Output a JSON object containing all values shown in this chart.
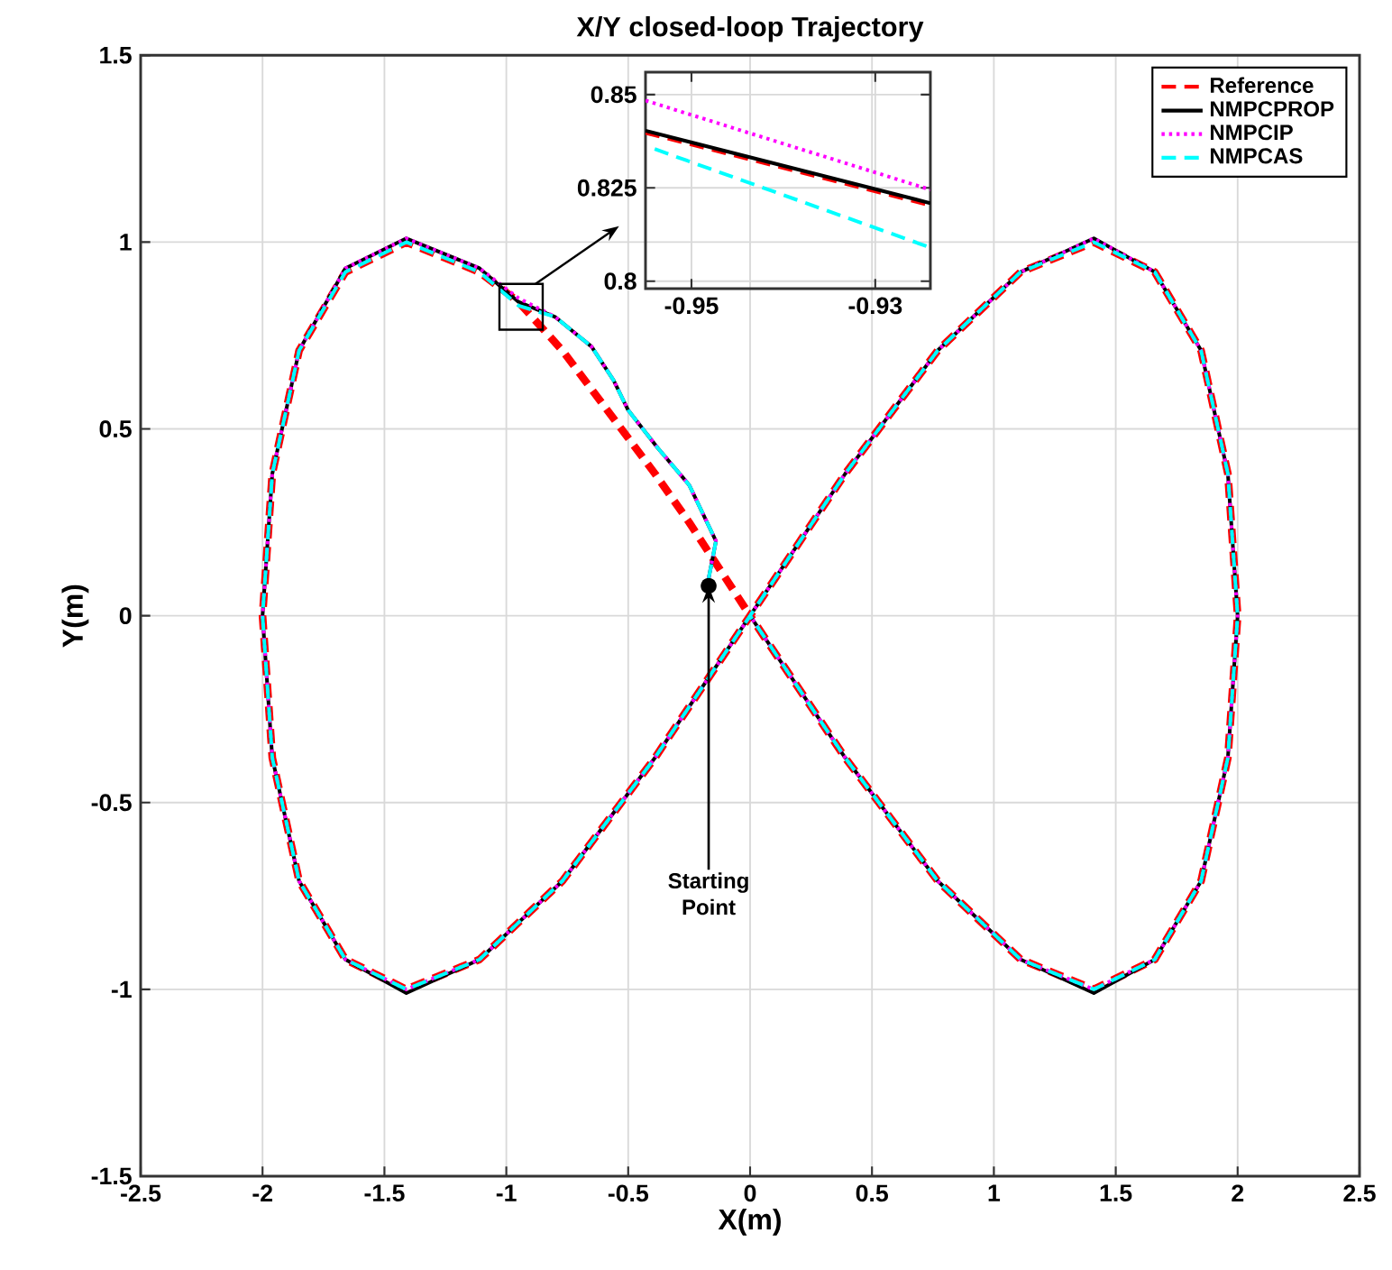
{
  "chart_data": [
    {
      "type": "line",
      "title": "X/Y closed-loop Trajectory",
      "xlabel": "X(m)",
      "ylabel": "Y(m)",
      "xlim": [
        -2.5,
        2.5
      ],
      "ylim": [
        -1.5,
        1.5
      ],
      "xticks": [
        -2.5,
        -2,
        -1.5,
        -1,
        -0.5,
        0,
        0.5,
        1,
        1.5,
        2,
        2.5
      ],
      "yticks": [
        -1.5,
        -1,
        -0.5,
        0,
        0.5,
        1,
        1.5
      ],
      "grid": true,
      "legend": "top right",
      "series": [
        {
          "name": "Reference",
          "color": "#ff0000",
          "line_style": "dashed",
          "x": [
            -0.02,
            -0.25,
            -0.39,
            -0.77,
            -0.95,
            -1.11,
            -1.41,
            -1.66,
            -1.85,
            -1.96,
            -2,
            -1.96,
            -1.85,
            -1.66,
            -1.41,
            -1.11,
            -0.77,
            -0.39,
            0,
            0.39,
            0.77,
            1.11,
            1.41,
            1.66,
            1.85,
            1.96,
            2,
            1.96,
            1.85,
            1.66,
            1.41,
            1.11,
            0.77,
            0.39,
            0
          ],
          "values": [
            0.02,
            0.25,
            0.38,
            0.71,
            0.84,
            0.92,
            1,
            0.92,
            0.71,
            0.38,
            0,
            -0.38,
            -0.71,
            -0.92,
            -1,
            -0.92,
            -0.71,
            -0.38,
            0,
            0.38,
            0.71,
            0.92,
            1,
            0.92,
            0.71,
            0.38,
            0,
            -0.38,
            -0.71,
            -0.92,
            -1,
            -0.92,
            -0.71,
            -0.38,
            0
          ]
        },
        {
          "name": "NMPCPROP",
          "color": "#000000",
          "line_style": "solid",
          "x": [
            -0.17,
            -0.14,
            -0.25,
            -0.38,
            -0.5,
            -0.56,
            -0.65,
            -0.8,
            -0.95,
            -1.11,
            -1.41,
            -1.66,
            -1.85,
            -1.96,
            -2,
            -1.96,
            -1.85,
            -1.66,
            -1.41,
            -1.11,
            -0.77,
            -0.39,
            0,
            0.39,
            0.77,
            1.11,
            1.41,
            1.66,
            1.85,
            1.96,
            2,
            1.96,
            1.85,
            1.66,
            1.41,
            1.11,
            0.77,
            0.39,
            0
          ],
          "values": [
            0.1,
            0.2,
            0.35,
            0.45,
            0.55,
            0.63,
            0.72,
            0.8,
            0.84,
            0.93,
            1.01,
            0.93,
            0.71,
            0.38,
            0,
            -0.38,
            -0.71,
            -0.92,
            -1.01,
            -0.92,
            -0.71,
            -0.38,
            0,
            0.38,
            0.71,
            0.92,
            1.01,
            0.92,
            0.71,
            0.38,
            0,
            -0.38,
            -0.71,
            -0.92,
            -1.01,
            -0.92,
            -0.71,
            -0.38,
            0
          ]
        },
        {
          "name": "NMPCIP",
          "color": "#ff00ff",
          "line_style": "dotted",
          "x": [
            -0.17,
            -0.14,
            -0.25,
            -0.38,
            -0.5,
            -0.56,
            -0.65,
            -0.8,
            -0.95,
            -1.11,
            -1.41,
            -1.66,
            -1.85,
            -1.96,
            -2,
            -1.96,
            -1.85,
            -1.66,
            -1.41,
            -1.11,
            -0.77,
            -0.39,
            0,
            0.39,
            0.77,
            1.11,
            1.41,
            1.66,
            1.85,
            1.96,
            2,
            1.96,
            1.85,
            1.66,
            1.41,
            1.11,
            0.77,
            0.39,
            0
          ],
          "values": [
            0.1,
            0.2,
            0.35,
            0.45,
            0.55,
            0.63,
            0.72,
            0.8,
            0.85,
            0.93,
            1.01,
            0.93,
            0.71,
            0.38,
            0,
            -0.38,
            -0.71,
            -0.92,
            -1,
            -0.92,
            -0.71,
            -0.38,
            0,
            0.38,
            0.71,
            0.92,
            1.01,
            0.92,
            0.71,
            0.38,
            0,
            -0.38,
            -0.71,
            -0.92,
            -1,
            -0.92,
            -0.71,
            -0.38,
            0
          ]
        },
        {
          "name": "NMPCAS",
          "color": "#00ffff",
          "line_style": "dashed",
          "x": [
            -0.17,
            -0.14,
            -0.25,
            -0.38,
            -0.5,
            -0.56,
            -0.65,
            -0.8,
            -0.95,
            -1.11,
            -1.41,
            -1.66,
            -1.85,
            -1.96,
            -2,
            -1.96,
            -1.85,
            -1.66,
            -1.41,
            -1.11,
            -0.77,
            -0.39,
            0,
            0.39,
            0.77,
            1.11,
            1.41,
            1.66,
            1.85,
            1.96,
            2,
            1.96,
            1.85,
            1.66,
            1.41,
            1.11,
            0.77,
            0.39,
            0
          ],
          "values": [
            0.1,
            0.2,
            0.35,
            0.45,
            0.55,
            0.63,
            0.72,
            0.8,
            0.83,
            0.92,
            1,
            0.92,
            0.71,
            0.38,
            0,
            -0.38,
            -0.71,
            -0.92,
            -1,
            -0.92,
            -0.71,
            -0.38,
            0,
            0.38,
            0.71,
            0.92,
            1,
            0.92,
            0.71,
            0.38,
            0,
            -0.38,
            -0.71,
            -0.92,
            -1,
            -0.92,
            -0.71,
            -0.38,
            0
          ]
        }
      ],
      "annotations": [
        {
          "text": "Starting Point",
          "x": -0.17,
          "y": 0.08
        }
      ]
    },
    {
      "type": "line",
      "xlim": [
        -0.955,
        -0.924
      ],
      "ylim": [
        0.798,
        0.856
      ],
      "xticks": [
        -0.95,
        -0.93
      ],
      "yticks": [
        0.8,
        0.825,
        0.85
      ],
      "grid": true,
      "series": [
        {
          "color": "#ff0000",
          "line_style": "dashed",
          "x": [
            -0.955,
            -0.924
          ],
          "values": [
            0.8397,
            0.8203
          ]
        },
        {
          "color": "#000000",
          "line_style": "solid",
          "x": [
            -0.955,
            -0.924
          ],
          "values": [
            0.8403,
            0.8209
          ]
        },
        {
          "color": "#ff00ff",
          "line_style": "dotted",
          "x": [
            -0.955,
            -0.924
          ],
          "values": [
            0.8484,
            0.8245
          ]
        },
        {
          "color": "#00ffff",
          "line_style": "dashed",
          "x": [
            -0.954,
            -0.924
          ],
          "values": [
            0.8354,
            0.809
          ]
        }
      ]
    }
  ]
}
